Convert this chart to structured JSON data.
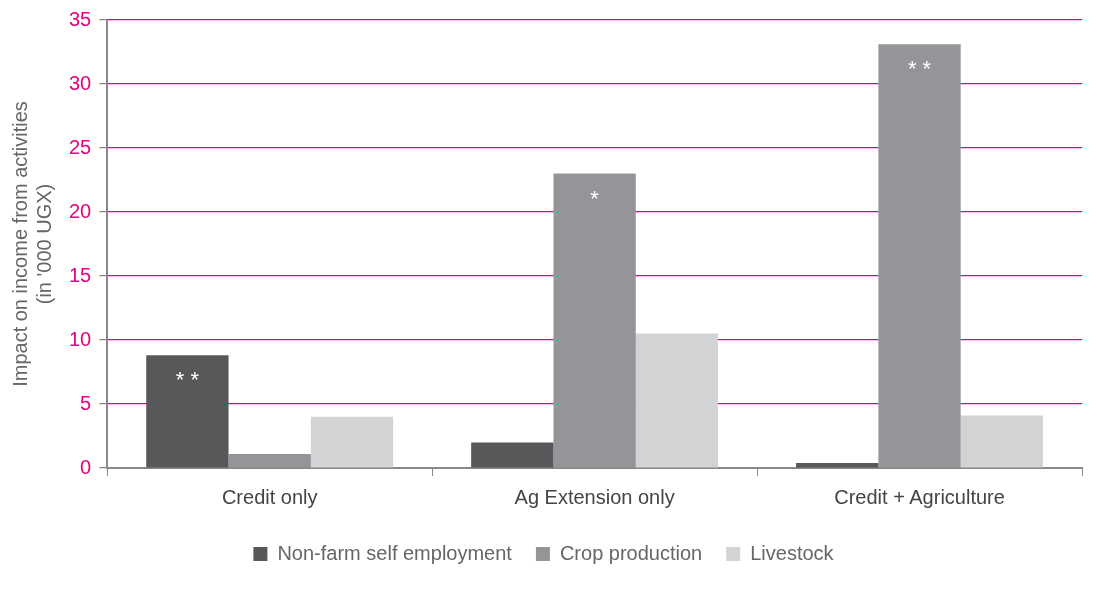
{
  "chart_data": {
    "type": "bar",
    "ylabel": "Impact on income from activities\n(in '000 UGX)",
    "categories": [
      "Credit only",
      "Ag Extension only",
      "Credit + Agriculture"
    ],
    "series": [
      {
        "name": "Non-farm self employment",
        "color": "#58585a",
        "values": [
          8.8,
          2.0,
          0.4
        ]
      },
      {
        "name": "Crop production",
        "color": "#939598",
        "values": [
          1.1,
          23.0,
          33.1
        ]
      },
      {
        "name": "Livestock",
        "color": "#d1d3d4",
        "values": [
          4.0,
          10.5,
          4.1
        ]
      }
    ],
    "ylim": [
      0,
      35
    ],
    "yticks": [
      0,
      5,
      10,
      15,
      20,
      25,
      30,
      35
    ],
    "grid": "y",
    "legend": "bottom",
    "annotations": [
      "* *",
      "*",
      "* *"
    ]
  }
}
